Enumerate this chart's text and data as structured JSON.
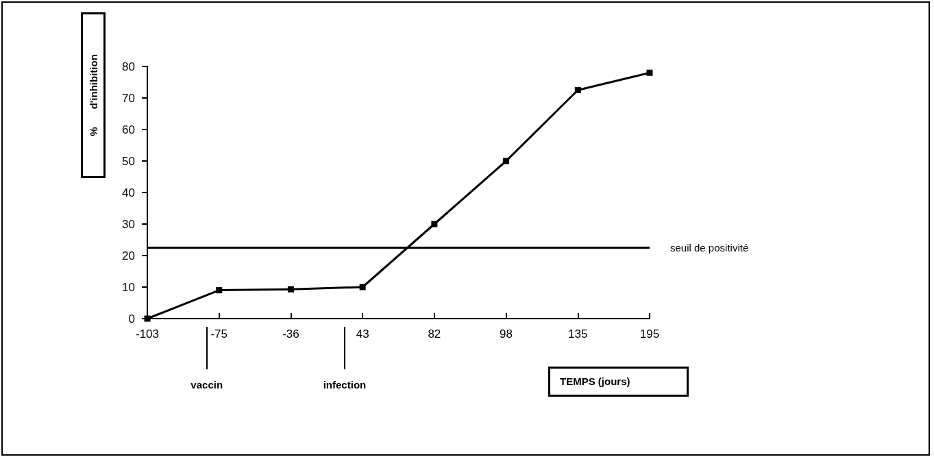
{
  "chart_data": {
    "type": "line",
    "xlabel": "TEMPS (jours)",
    "ylabel": "% d'inhibition",
    "categories": [
      "-103",
      "-75",
      "-36",
      "43",
      "82",
      "98",
      "135",
      "195"
    ],
    "series": [
      {
        "color": "#000000",
        "values": [
          0,
          9,
          9.3,
          10,
          30,
          50,
          72.5,
          78
        ]
      }
    ],
    "ylim": [
      0,
      80
    ],
    "yticks": [
      0,
      10,
      20,
      30,
      40,
      50,
      60,
      70,
      80
    ],
    "ref_lines": [
      {
        "axis": "y",
        "value": 22.5,
        "label": "seuil de positivité",
        "color": "#000000"
      }
    ],
    "annotations": [
      "vaccin",
      "infection"
    ],
    "marker": "square",
    "line_style": "solid",
    "grid": false
  }
}
